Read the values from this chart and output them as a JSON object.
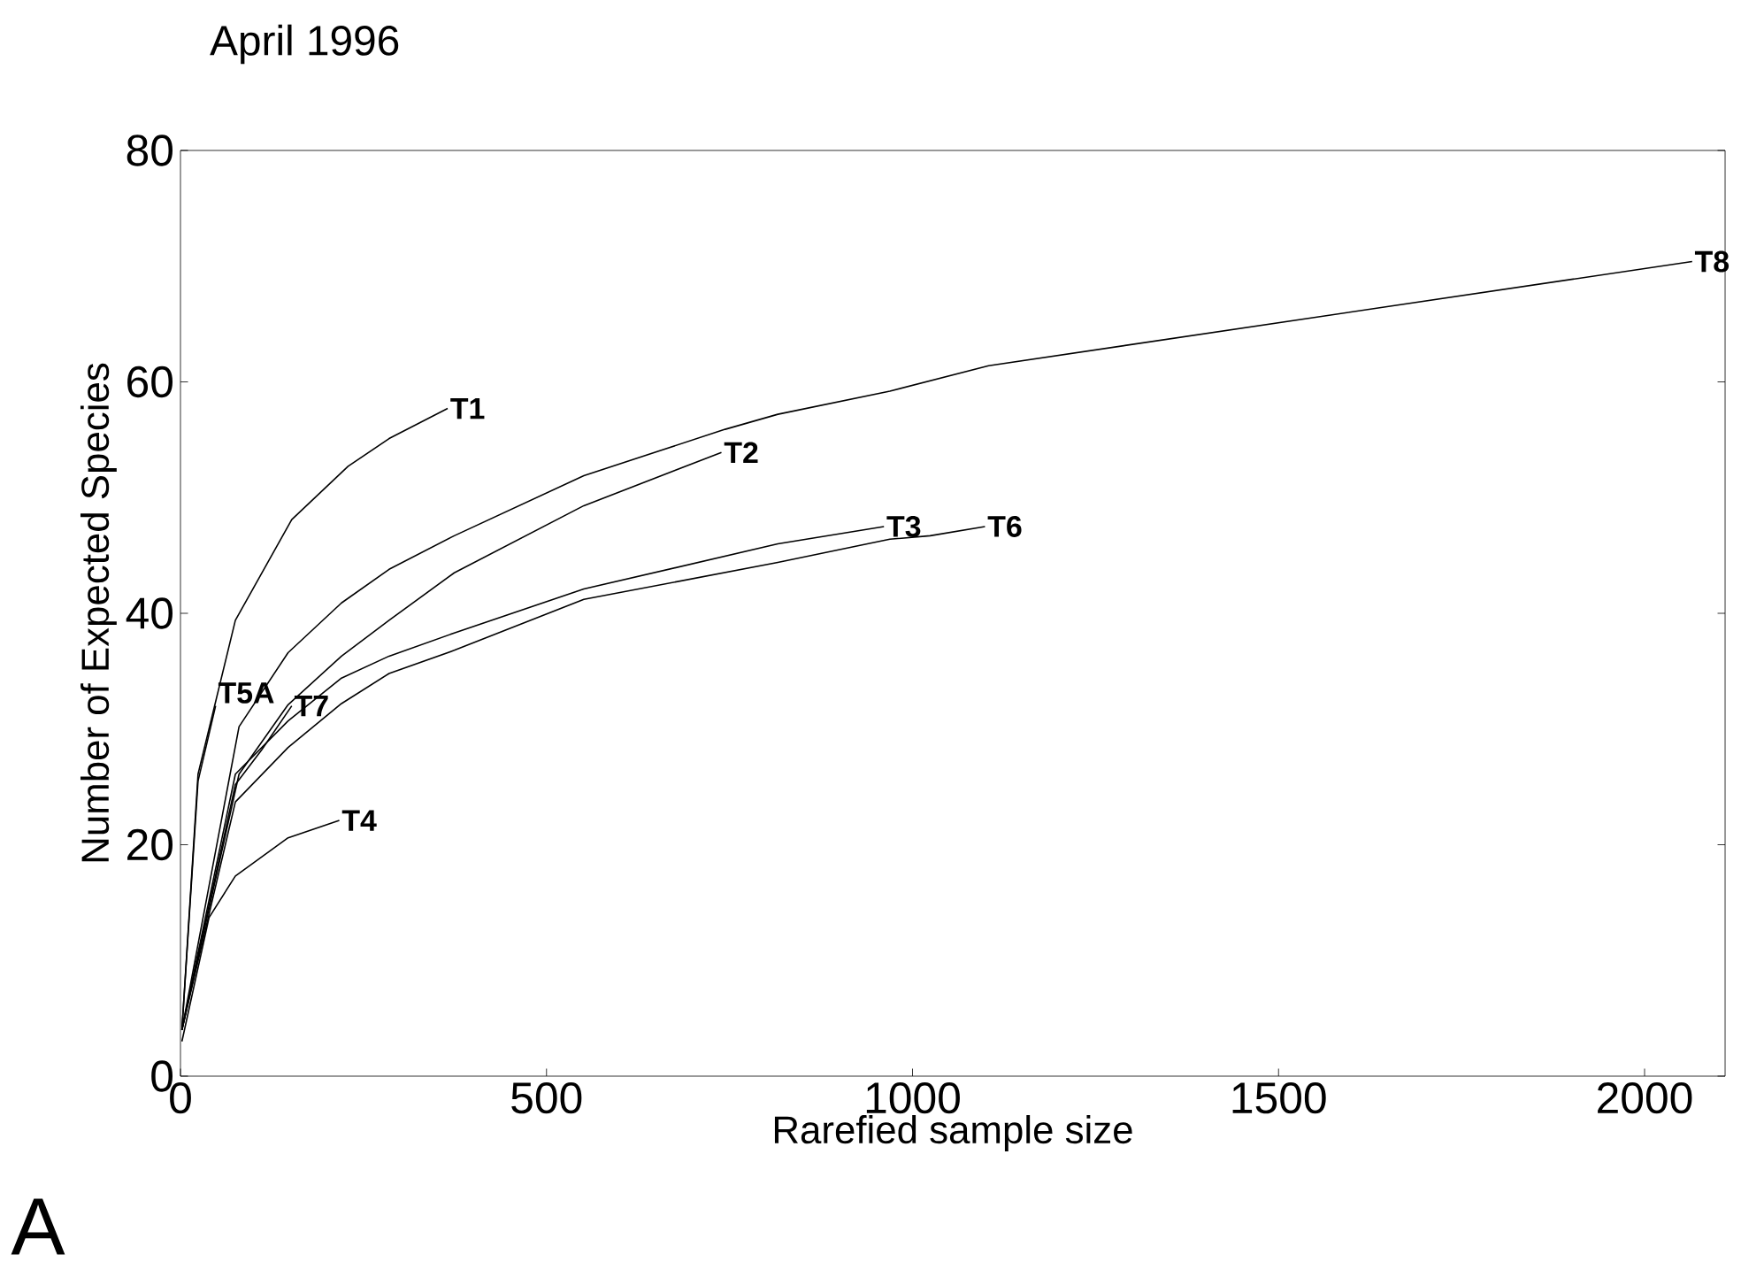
{
  "chart_data": {
    "type": "line",
    "title": "April 1996",
    "xlabel": "Rarefied sample size",
    "ylabel": "Number of Expected Species",
    "xlim": [
      0,
      2110
    ],
    "ylim": [
      0,
      80
    ],
    "xticks": [
      0,
      500,
      1000,
      1500,
      2000
    ],
    "yticks": [
      0,
      20,
      40,
      60,
      80
    ],
    "grid": false,
    "legend": false,
    "marker": "none",
    "line_style": "solid",
    "annotations": [
      "A"
    ],
    "series": [
      {
        "name": "T1",
        "color": "#000000",
        "x": [
          2,
          24,
          75,
          152,
          229,
          285,
          365
        ],
        "values": [
          4,
          26.1,
          39.4,
          48.1,
          52.7,
          55.1,
          57.7
        ]
      },
      {
        "name": "T2",
        "color": "#000000",
        "x": [
          2,
          80,
          147,
          220,
          285,
          374,
          551,
          739
        ],
        "values": [
          4,
          26.1,
          32.1,
          36.3,
          39.4,
          43.5,
          49.3,
          53.9
        ]
      },
      {
        "name": "T3",
        "color": "#000000",
        "x": [
          2,
          75,
          147,
          220,
          285,
          374,
          551,
          816,
          961
        ],
        "values": [
          4,
          26.1,
          30.7,
          34.4,
          36.3,
          38.3,
          42.1,
          46.0,
          47.5
        ]
      },
      {
        "name": "T4",
        "color": "#000000",
        "x": [
          2,
          39,
          75,
          147,
          217
        ],
        "values": [
          3,
          13.7,
          17.3,
          20.6,
          22.1
        ]
      },
      {
        "name": "T5A",
        "color": "#000000",
        "x": [
          2,
          24,
          48
        ],
        "values": [
          4,
          25.5,
          32.0
        ]
      },
      {
        "name": "T6",
        "color": "#000000",
        "x": [
          2,
          75,
          147,
          220,
          285,
          374,
          551,
          816,
          969,
          1024,
          1099
        ],
        "values": [
          4,
          23.7,
          28.4,
          32.2,
          34.8,
          36.8,
          41.2,
          44.4,
          46.4,
          46.7,
          47.5
        ]
      },
      {
        "name": "T7",
        "color": "#000000",
        "x": [
          2,
          75,
          111,
          152
        ],
        "values": [
          4,
          25.2,
          28.2,
          32.0
        ]
      },
      {
        "name": "T8",
        "color": "#000000",
        "x": [
          2,
          80,
          147,
          220,
          285,
          374,
          551,
          744,
          816,
          969,
          1104,
          2065
        ],
        "values": [
          4,
          30.2,
          36.6,
          40.9,
          43.8,
          46.7,
          51.9,
          55.9,
          57.2,
          59.2,
          61.4,
          70.4
        ]
      }
    ]
  }
}
